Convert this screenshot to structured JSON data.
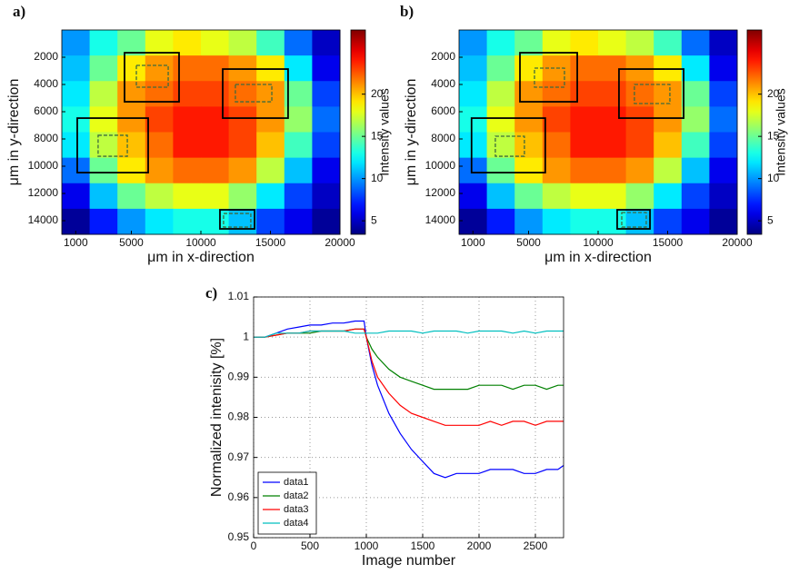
{
  "chart_data": [
    {
      "type": "heatmap",
      "panel_label": "a)",
      "xlabel": "μm in x-direction",
      "ylabel": "μm in y-direction",
      "colorbar_label": "Intensity values",
      "xlim": [
        0,
        20000
      ],
      "ylim": [
        0,
        15000
      ],
      "y_inverted": true,
      "xticks": [
        1000,
        5000,
        10000,
        15000,
        20000
      ],
      "yticks": [
        2000,
        4000,
        6000,
        8000,
        10000,
        12000,
        14000
      ],
      "clim": [
        3.4,
        27.6
      ],
      "cticks": [
        5,
        10,
        15,
        20
      ],
      "colormap": "jet",
      "values": [
        [
          10,
          13,
          15,
          18,
          19,
          18,
          17,
          14,
          9,
          5
        ],
        [
          11,
          15,
          19,
          21,
          22,
          22,
          21,
          19,
          12,
          6
        ],
        [
          12,
          17,
          21,
          22,
          23,
          23,
          22,
          21,
          15,
          8
        ],
        [
          13,
          18,
          21,
          23,
          24,
          24,
          23,
          21,
          16,
          9
        ],
        [
          12,
          17,
          20,
          22,
          24,
          24,
          23,
          20,
          14,
          8
        ],
        [
          9,
          15,
          19,
          21,
          22,
          22,
          21,
          17,
          11,
          6
        ],
        [
          6,
          11,
          15,
          17,
          18,
          18,
          16,
          12,
          8,
          5
        ],
        [
          4,
          7,
          10,
          12,
          13,
          13,
          11,
          8,
          6,
          4
        ]
      ],
      "regions": [
        {
          "x": [
            4510,
            8430
          ],
          "y": [
            1670,
            5270
          ],
          "color": "#000000",
          "dashed": false
        },
        {
          "x": [
            11570,
            16270
          ],
          "y": [
            2870,
            6470
          ],
          "color": "#000000",
          "dashed": false
        },
        {
          "x": [
            1110,
            6210
          ],
          "y": [
            6470,
            10470
          ],
          "color": "#000000",
          "dashed": false
        },
        {
          "x": [
            11370,
            13860
          ],
          "y": [
            13200,
            14600
          ],
          "color": "#000000",
          "dashed": false
        },
        {
          "x": [
            5360,
            7650
          ],
          "y": [
            2600,
            4200
          ],
          "color": "#3d6b3d",
          "dashed": true
        },
        {
          "x": [
            12480,
            15100
          ],
          "y": [
            4000,
            5270
          ],
          "color": "#3d6b3d",
          "dashed": true
        },
        {
          "x": [
            2610,
            4710
          ],
          "y": [
            7730,
            9270
          ],
          "color": "#3d6b3d",
          "dashed": true
        },
        {
          "x": [
            11630,
            13590
          ],
          "y": [
            13470,
            14470
          ],
          "color": "#3d6b3d",
          "dashed": true
        }
      ]
    },
    {
      "type": "heatmap",
      "panel_label": "b)",
      "xlabel": "μm in x-direction",
      "ylabel": "μm in y-direction",
      "colorbar_label": "Intensity values",
      "xlim": [
        0,
        20000
      ],
      "ylim": [
        0,
        15000
      ],
      "y_inverted": true,
      "xticks": [
        1000,
        5000,
        10000,
        15000,
        20000
      ],
      "yticks": [
        2000,
        4000,
        6000,
        8000,
        10000,
        12000,
        14000
      ],
      "clim": [
        3.4,
        27.6
      ],
      "cticks": [
        5,
        10,
        15,
        20
      ],
      "colormap": "jet",
      "values": [
        [
          10,
          13,
          15,
          18,
          19,
          18,
          17,
          14,
          9,
          5
        ],
        [
          11,
          15,
          19,
          21,
          22,
          22,
          21,
          19,
          12,
          6
        ],
        [
          12,
          17,
          21,
          22,
          23,
          23,
          22,
          21,
          15,
          8
        ],
        [
          13,
          18,
          21,
          23,
          24,
          24,
          23,
          21,
          16,
          9
        ],
        [
          12,
          17,
          20,
          22,
          24,
          24,
          23,
          20,
          14,
          8
        ],
        [
          9,
          15,
          19,
          21,
          22,
          22,
          21,
          17,
          11,
          6
        ],
        [
          6,
          11,
          15,
          17,
          18,
          18,
          16,
          12,
          8,
          5
        ],
        [
          4,
          7,
          10,
          12,
          13,
          13,
          11,
          8,
          6,
          4
        ]
      ],
      "regions": [
        {
          "x": [
            4380,
            8500
          ],
          "y": [
            1670,
            5270
          ],
          "color": "#000000",
          "dashed": false
        },
        {
          "x": [
            11500,
            16150
          ],
          "y": [
            2870,
            6470
          ],
          "color": "#000000",
          "dashed": false
        },
        {
          "x": [
            900,
            6200
          ],
          "y": [
            6470,
            10470
          ],
          "color": "#000000",
          "dashed": false
        },
        {
          "x": [
            11370,
            13730
          ],
          "y": [
            13200,
            14600
          ],
          "color": "#000000",
          "dashed": false
        },
        {
          "x": [
            5425,
            7580
          ],
          "y": [
            2800,
            4200
          ],
          "color": "#3d6b3d",
          "dashed": true
        },
        {
          "x": [
            12610,
            15160
          ],
          "y": [
            4000,
            5400
          ],
          "color": "#3d6b3d",
          "dashed": true
        },
        {
          "x": [
            2610,
            4700
          ],
          "y": [
            7800,
            9270
          ],
          "color": "#3d6b3d",
          "dashed": true
        },
        {
          "x": [
            11700,
            13460
          ],
          "y": [
            13400,
            14470
          ],
          "color": "#3d6b3d",
          "dashed": true
        }
      ]
    },
    {
      "type": "line",
      "panel_label": "c)",
      "xlabel": "Image number",
      "ylabel": "Normalized intenisity [%]",
      "xlim": [
        0,
        2750
      ],
      "ylim": [
        0.95,
        1.01
      ],
      "xticks": [
        0,
        500,
        1000,
        1500,
        2000,
        2500
      ],
      "yticks": [
        0.95,
        0.96,
        0.97,
        0.98,
        0.99,
        1,
        1.01
      ],
      "grid": true,
      "legend": "lower left",
      "x": [
        0,
        100,
        200,
        300,
        400,
        500,
        600,
        700,
        800,
        900,
        980,
        1000,
        1050,
        1100,
        1200,
        1300,
        1400,
        1500,
        1600,
        1700,
        1800,
        1900,
        2000,
        2100,
        2200,
        2300,
        2400,
        2500,
        2600,
        2700,
        2750
      ],
      "series": [
        {
          "name": "data1",
          "color": "#0000ff",
          "values": [
            1.0,
            1.0,
            1.001,
            1.002,
            1.0025,
            1.003,
            1.003,
            1.0035,
            1.0035,
            1.004,
            1.004,
            1.0,
            0.993,
            0.988,
            0.981,
            0.976,
            0.972,
            0.969,
            0.966,
            0.965,
            0.966,
            0.966,
            0.966,
            0.967,
            0.967,
            0.967,
            0.966,
            0.966,
            0.967,
            0.967,
            0.968
          ]
        },
        {
          "name": "data2",
          "color": "#008000",
          "values": [
            1.0,
            1.0,
            1.0005,
            1.001,
            1.001,
            1.001,
            1.0015,
            1.0015,
            1.0015,
            1.002,
            1.002,
            1.0,
            0.997,
            0.995,
            0.992,
            0.99,
            0.989,
            0.988,
            0.987,
            0.987,
            0.987,
            0.987,
            0.988,
            0.988,
            0.988,
            0.987,
            0.988,
            0.988,
            0.987,
            0.988,
            0.988
          ]
        },
        {
          "name": "data3",
          "color": "#ff0000",
          "values": [
            1.0,
            1.0,
            1.0005,
            1.001,
            1.001,
            1.0015,
            1.0015,
            1.0015,
            1.0015,
            1.002,
            1.002,
            1.0,
            0.994,
            0.99,
            0.986,
            0.983,
            0.981,
            0.98,
            0.979,
            0.978,
            0.978,
            0.978,
            0.978,
            0.979,
            0.978,
            0.979,
            0.979,
            0.978,
            0.979,
            0.979,
            0.979
          ]
        },
        {
          "name": "data4",
          "color": "#00bfbf",
          "values": [
            1.0,
            1.0,
            1.001,
            1.001,
            1.001,
            1.0015,
            1.0015,
            1.0015,
            1.0015,
            1.001,
            1.001,
            1.001,
            1.001,
            1.001,
            1.0015,
            1.0015,
            1.0015,
            1.001,
            1.0015,
            1.0015,
            1.0015,
            1.001,
            1.0015,
            1.0015,
            1.0015,
            1.001,
            1.0015,
            1.001,
            1.0015,
            1.0015,
            1.0015
          ]
        }
      ]
    }
  ]
}
